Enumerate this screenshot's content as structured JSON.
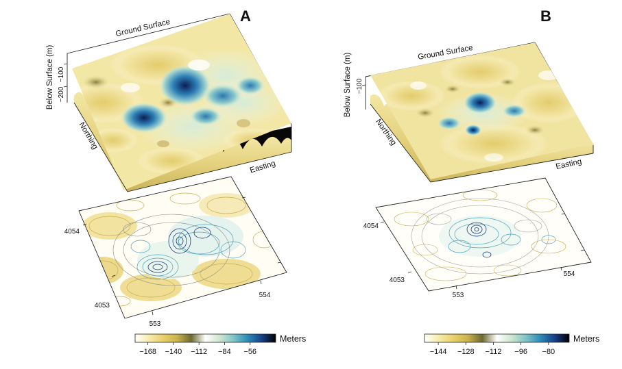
{
  "figure": {
    "panels": [
      {
        "letter": "A",
        "surface_label": "Ground Surface",
        "depth_axis_label": "Below Surface (m)",
        "depth_ticks": [
          "−100",
          "−200"
        ],
        "northing_label": "Northing",
        "easting_label": "Easting",
        "map_northing_ticks": [
          "4054",
          "4053"
        ],
        "map_easting_ticks": [
          "553",
          "554"
        ],
        "colorbar": {
          "title": "Meters",
          "ticks": [
            "−168",
            "−140",
            "−112",
            "−84",
            "−56"
          ],
          "range": [
            -182,
            -28
          ],
          "colors": [
            "#ffffff",
            "#f7eca8",
            "#e8cf6a",
            "#c9b24c",
            "#6c6a32",
            "#ffffff",
            "#cfe6cf",
            "#7fc5c8",
            "#2d8cb8",
            "#183f86",
            "#000000"
          ]
        }
      },
      {
        "letter": "B",
        "surface_label": "Ground Surface",
        "depth_axis_label": "Below Surface (m)",
        "depth_ticks": [
          "−100"
        ],
        "northing_label": "Northing",
        "easting_label": "Easting",
        "map_northing_ticks": [
          "4054",
          "4053"
        ],
        "map_easting_ticks": [
          "553",
          "554"
        ],
        "colorbar": {
          "title": "Meters",
          "ticks": [
            "−144",
            "−128",
            "−112",
            "−96",
            "−80"
          ],
          "range": [
            -152,
            -68
          ],
          "colors": [
            "#ffffff",
            "#f7eca8",
            "#e8cf6a",
            "#c9b24c",
            "#6c6a32",
            "#ffffff",
            "#cfe6cf",
            "#7fc5c8",
            "#2d8cb8",
            "#183f86",
            "#000000"
          ]
        }
      }
    ]
  },
  "chart_data": [
    {
      "type": "heatmap",
      "title": "A",
      "subtype": "3D surface and contour map of depth below ground surface",
      "xlabel": "Easting",
      "ylabel": "Northing",
      "zlabel": "Below Surface (m)",
      "x_ticks": [
        553,
        554
      ],
      "y_ticks": [
        4053,
        4054
      ],
      "z_ticks": [
        -100,
        -200
      ],
      "colorbar_label": "Meters",
      "colorbar_ticks": [
        -168,
        -140,
        -112,
        -84,
        -56
      ]
    },
    {
      "type": "heatmap",
      "title": "B",
      "subtype": "3D surface and contour map of depth below ground surface",
      "xlabel": "Easting",
      "ylabel": "Northing",
      "zlabel": "Below Surface (m)",
      "x_ticks": [
        553,
        554
      ],
      "y_ticks": [
        4053,
        4054
      ],
      "z_ticks": [
        -100
      ],
      "colorbar_label": "Meters",
      "colorbar_ticks": [
        -144,
        -128,
        -112,
        -96,
        -80
      ]
    }
  ]
}
